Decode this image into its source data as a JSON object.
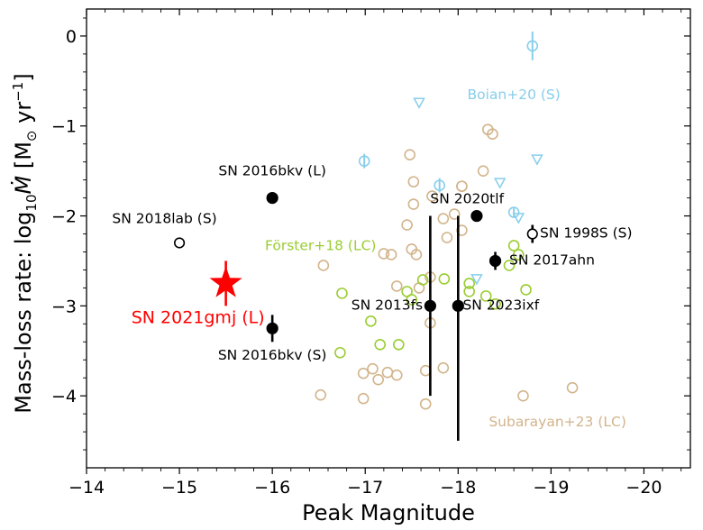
{
  "chart_data": {
    "type": "scatter",
    "xlabel": "Peak Magnitude",
    "ylabel_prefix": "Mass-loss rate: log",
    "ylabel_sub": "10",
    "ylabel_var": "Ṁ",
    "ylabel_unit_open": " [M",
    "ylabel_unit_sun": "⊙",
    "ylabel_unit_yr": " yr",
    "ylabel_unit_exp": "−1",
    "ylabel_unit_close": "]",
    "xlim": [
      -14,
      -20.5
    ],
    "ylim": [
      -4.8,
      0.3
    ],
    "x_ticks": [
      {
        "value": -14,
        "label": "−14"
      },
      {
        "value": -15,
        "label": "−15"
      },
      {
        "value": -16,
        "label": "−16"
      },
      {
        "value": -17,
        "label": "−17"
      },
      {
        "value": -18,
        "label": "−18"
      },
      {
        "value": -19,
        "label": "−19"
      },
      {
        "value": -20,
        "label": "−20"
      }
    ],
    "y_ticks": [
      {
        "value": 0,
        "label": "0"
      },
      {
        "value": -1,
        "label": "−1"
      },
      {
        "value": -2,
        "label": "−2"
      },
      {
        "value": -3,
        "label": "−3"
      },
      {
        "value": -4,
        "label": "−4"
      }
    ],
    "colors": {
      "subarayan": "#d2b48c",
      "forster": "#9acd32",
      "boian": "#87ceeb",
      "highlight": "#ff0000",
      "black": "#000000"
    },
    "series": [
      {
        "name": "Subarayan+23 (LC)",
        "marker": "open-circle",
        "color": "#d2b48c",
        "label": "Subarayan+23 (LC)",
        "points": [
          {
            "x": -16.52,
            "y": -3.99
          },
          {
            "x": -16.55,
            "y": -2.55
          },
          {
            "x": -16.98,
            "y": -4.03
          },
          {
            "x": -16.98,
            "y": -3.75
          },
          {
            "x": -17.08,
            "y": -3.7
          },
          {
            "x": -17.14,
            "y": -3.82
          },
          {
            "x": -17.2,
            "y": -2.42
          },
          {
            "x": -17.24,
            "y": -3.74
          },
          {
            "x": -17.28,
            "y": -2.43
          },
          {
            "x": -17.34,
            "y": -3.77
          },
          {
            "x": -17.34,
            "y": -2.78
          },
          {
            "x": -17.45,
            "y": -2.1
          },
          {
            "x": -17.48,
            "y": -1.32
          },
          {
            "x": -17.5,
            "y": -2.37
          },
          {
            "x": -17.52,
            "y": -1.62
          },
          {
            "x": -17.52,
            "y": -1.87
          },
          {
            "x": -17.55,
            "y": -2.43
          },
          {
            "x": -17.58,
            "y": -2.8
          },
          {
            "x": -17.65,
            "y": -3.72
          },
          {
            "x": -17.65,
            "y": -4.09
          },
          {
            "x": -17.7,
            "y": -2.68
          },
          {
            "x": -17.7,
            "y": -3.19
          },
          {
            "x": -17.72,
            "y": -1.78
          },
          {
            "x": -17.84,
            "y": -2.03
          },
          {
            "x": -17.84,
            "y": -3.69
          },
          {
            "x": -17.88,
            "y": -2.24
          },
          {
            "x": -17.96,
            "y": -1.98
          },
          {
            "x": -18.04,
            "y": -2.16
          },
          {
            "x": -18.04,
            "y": -1.67
          },
          {
            "x": -18.04,
            "y": -1.67
          },
          {
            "x": -18.27,
            "y": -1.5
          },
          {
            "x": -18.32,
            "y": -1.04
          },
          {
            "x": -18.37,
            "y": -1.09
          },
          {
            "x": -18.7,
            "y": -4.0
          },
          {
            "x": -19.23,
            "y": -3.91
          }
        ]
      },
      {
        "name": "Förster+18 (LC)",
        "marker": "open-circle",
        "color": "#9acd32",
        "label": "Förster+18 (LC)",
        "points": [
          {
            "x": -16.73,
            "y": -3.52
          },
          {
            "x": -16.75,
            "y": -2.86
          },
          {
            "x": -17.06,
            "y": -3.17
          },
          {
            "x": -17.16,
            "y": -3.43
          },
          {
            "x": -17.36,
            "y": -3.43
          },
          {
            "x": -17.45,
            "y": -2.84
          },
          {
            "x": -17.5,
            "y": -2.93
          },
          {
            "x": -17.62,
            "y": -2.71
          },
          {
            "x": -17.85,
            "y": -2.7
          },
          {
            "x": -18.12,
            "y": -2.75
          },
          {
            "x": -18.12,
            "y": -2.84
          },
          {
            "x": -18.3,
            "y": -2.89
          },
          {
            "x": -18.4,
            "y": -2.98
          },
          {
            "x": -18.55,
            "y": -2.55
          },
          {
            "x": -18.6,
            "y": -2.33
          },
          {
            "x": -18.65,
            "y": -2.43
          },
          {
            "x": -18.73,
            "y": -2.82
          }
        ]
      },
      {
        "name": "Boian+20 (S)",
        "label": "Boian+20 (S)",
        "color": "#87ceeb",
        "circles": [
          {
            "x": -16.99,
            "y": -1.39,
            "err": 0.08
          },
          {
            "x": -17.8,
            "y": -1.66,
            "err": 0.08
          },
          {
            "x": -18.6,
            "y": -1.96,
            "err": 0.05
          },
          {
            "x": -18.8,
            "y": -0.11,
            "err": 0.16
          }
        ],
        "triangles": [
          {
            "x": -17.58,
            "y": -0.74
          },
          {
            "x": -18.2,
            "y": -2.7
          },
          {
            "x": -18.45,
            "y": -1.63
          },
          {
            "x": -18.65,
            "y": -2.02
          },
          {
            "x": -18.85,
            "y": -1.37
          }
        ]
      }
    ],
    "highlight_points": [
      {
        "name": "SN 2016bkv (L)",
        "label": "SN 2016bkv (L)",
        "x": -16.0,
        "y": -1.8,
        "filled": true,
        "err_up": 0,
        "err_down": 0
      },
      {
        "name": "SN 2016bkv (S)",
        "label": "SN 2016bkv (S)",
        "x": -16.0,
        "y": -3.25,
        "filled": true,
        "err_up": 0.15,
        "err_down": 0.15
      },
      {
        "name": "SN 2018lab (S)",
        "label": "SN 2018lab (S)",
        "x": -15.0,
        "y": -2.3,
        "filled": false,
        "err_up": 0,
        "err_down": 0
      },
      {
        "name": "SN 2020tlf",
        "label": "SN 2020tlf",
        "x": -18.2,
        "y": -2.0,
        "filled": true,
        "err_up": 0,
        "err_down": 0
      },
      {
        "name": "SN 1998S (S)",
        "label": "SN 1998S (S)",
        "x": -18.8,
        "y": -2.2,
        "filled": false,
        "err_up": 0.1,
        "err_down": 0.1
      },
      {
        "name": "SN 2017ahn",
        "label": "SN 2017ahn",
        "x": -18.4,
        "y": -2.5,
        "filled": true,
        "err_up": 0.1,
        "err_down": 0.1
      },
      {
        "name": "SN 2013fs",
        "label": "SN 2013fs",
        "x": -17.7,
        "y": -3.0,
        "filled": true,
        "err_up": 1.0,
        "err_down": 1.0
      },
      {
        "name": "SN 2023ixf",
        "label": "SN 2023ixf",
        "x": -18.0,
        "y": -3.0,
        "filled": true,
        "err_up": 1.0,
        "err_down": 1.5
      }
    ],
    "star": {
      "name": "SN 2021gmj (L)",
      "label": "SN 2021gmj (L)",
      "x": -15.5,
      "y": -2.75,
      "err_up": 0.25,
      "err_down": 0.25,
      "color": "#ff0000"
    }
  }
}
